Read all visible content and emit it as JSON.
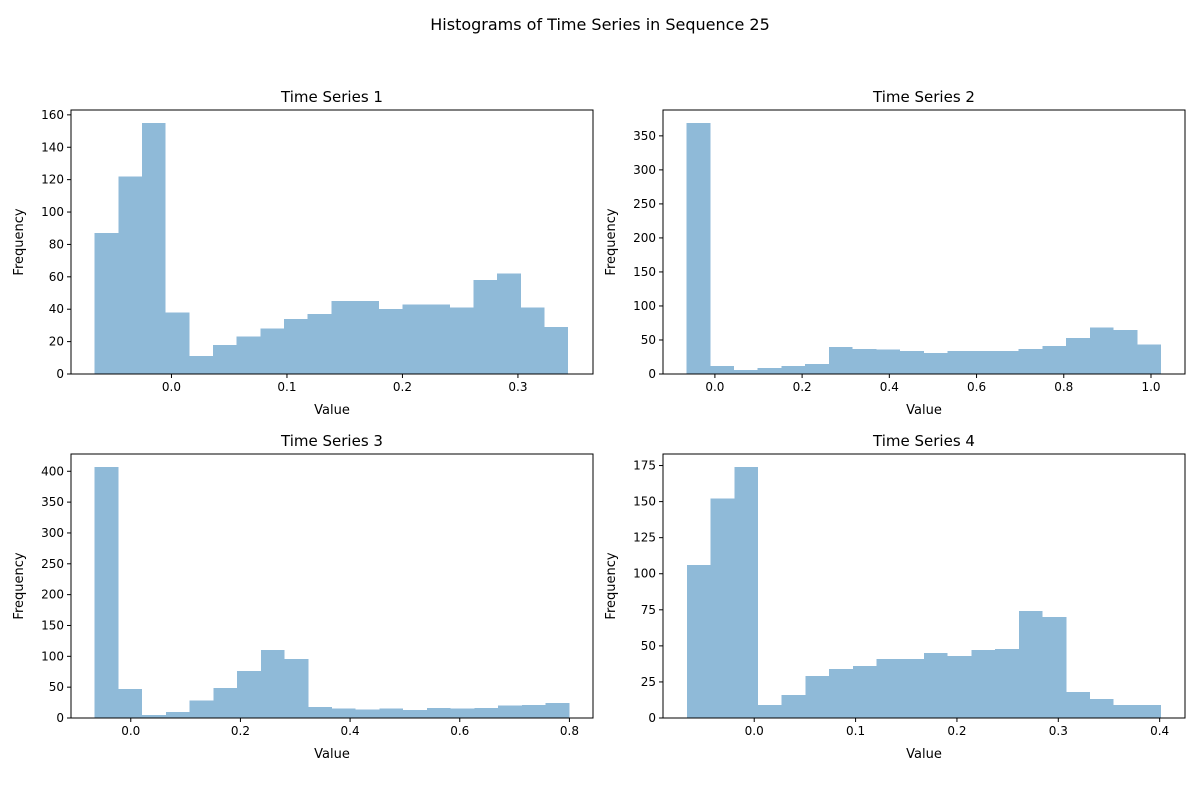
{
  "figure": {
    "suptitle": "Histograms of Time Series in Sequence 25"
  },
  "chart_data": [
    {
      "type": "bar",
      "title": "Time Series 1",
      "xlabel": "Value",
      "ylabel": "Frequency",
      "bar_color": "#8fbad8",
      "bin_start": -0.0665,
      "bin_width": 0.0205,
      "values": [
        87,
        122,
        155,
        38,
        11,
        18,
        23,
        28,
        34,
        37,
        45,
        45,
        40,
        43,
        43,
        41,
        58,
        62,
        41,
        29
      ],
      "xlim": [
        -0.087,
        0.365
      ],
      "ylim": [
        0,
        163
      ],
      "xticks": [
        0.0,
        0.1,
        0.2,
        0.3
      ],
      "xtick_labels": [
        "0.0",
        "0.1",
        "0.2",
        "0.3"
      ],
      "yticks": [
        0,
        20,
        40,
        60,
        80,
        100,
        120,
        140,
        160
      ],
      "ytick_labels": [
        "0",
        "20",
        "40",
        "60",
        "80",
        "100",
        "120",
        "140",
        "160"
      ]
    },
    {
      "type": "bar",
      "title": "Time Series 2",
      "xlabel": "Value",
      "ylabel": "Frequency",
      "bar_color": "#8fbad8",
      "bin_start": -0.065,
      "bin_width": 0.0544,
      "values": [
        369,
        12,
        6,
        9,
        12,
        15,
        40,
        37,
        36,
        34,
        31,
        34,
        34,
        34,
        37,
        41,
        53,
        68,
        65,
        43
      ],
      "xlim": [
        -0.119,
        1.078
      ],
      "ylim": [
        0,
        388
      ],
      "xticks": [
        0.0,
        0.2,
        0.4,
        0.6,
        0.8,
        1.0
      ],
      "xtick_labels": [
        "0.0",
        "0.2",
        "0.4",
        "0.6",
        "0.8",
        "1.0"
      ],
      "yticks": [
        0,
        50,
        100,
        150,
        200,
        250,
        300,
        350
      ],
      "ytick_labels": [
        "0",
        "50",
        "100",
        "150",
        "200",
        "250",
        "300",
        "350"
      ]
    },
    {
      "type": "bar",
      "title": "Time Series 3",
      "xlabel": "Value",
      "ylabel": "Frequency",
      "bar_color": "#8fbad8",
      "bin_start": -0.066,
      "bin_width": 0.0433,
      "values": [
        407,
        47,
        5,
        10,
        28,
        49,
        76,
        110,
        96,
        18,
        15,
        14,
        15,
        13,
        16,
        15,
        16,
        20,
        21,
        24
      ],
      "xlim": [
        -0.109,
        0.843
      ],
      "ylim": [
        0,
        428
      ],
      "xticks": [
        0.0,
        0.2,
        0.4,
        0.6,
        0.8
      ],
      "xtick_labels": [
        "0.0",
        "0.2",
        "0.4",
        "0.6",
        "0.8"
      ],
      "yticks": [
        0,
        50,
        100,
        150,
        200,
        250,
        300,
        350,
        400
      ],
      "ytick_labels": [
        "0",
        "50",
        "100",
        "150",
        "200",
        "250",
        "300",
        "350",
        "400"
      ]
    },
    {
      "type": "bar",
      "title": "Time Series 4",
      "xlabel": "Value",
      "ylabel": "Frequency",
      "bar_color": "#8fbad8",
      "bin_start": -0.0665,
      "bin_width": 0.0234,
      "values": [
        106,
        152,
        174,
        9,
        16,
        29,
        34,
        36,
        41,
        41,
        45,
        43,
        47,
        48,
        74,
        70,
        18,
        13,
        9,
        9
      ],
      "xlim": [
        -0.09,
        0.425
      ],
      "ylim": [
        0,
        183
      ],
      "xticks": [
        0.0,
        0.1,
        0.2,
        0.3,
        0.4
      ],
      "xtick_labels": [
        "0.0",
        "0.1",
        "0.2",
        "0.3",
        "0.4"
      ],
      "yticks": [
        0,
        25,
        50,
        75,
        100,
        125,
        150,
        175
      ],
      "ytick_labels": [
        "0",
        "25",
        "50",
        "75",
        "100",
        "125",
        "150",
        "175"
      ]
    }
  ]
}
